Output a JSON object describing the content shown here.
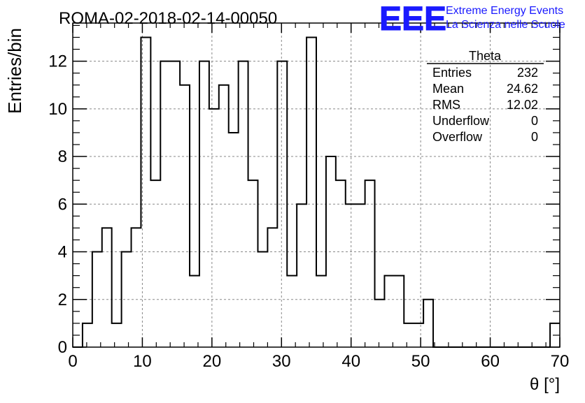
{
  "header": {
    "title": "ROMA-02-2018-02-14-00050",
    "logo_text": "EEE",
    "org_line1": "Extreme Energy Events",
    "org_line2": "La Scienza nelle Scuole",
    "accent_color": "#1a1aff"
  },
  "stats": {
    "name": "Theta",
    "rows": [
      {
        "label": "Entries",
        "value": "232"
      },
      {
        "label": "Mean",
        "value": "24.62"
      },
      {
        "label": "RMS",
        "value": "12.02"
      },
      {
        "label": "Underflow",
        "value": "0"
      },
      {
        "label": "Overflow",
        "value": "0"
      }
    ]
  },
  "chart_data": {
    "type": "bar",
    "style": "step-histogram",
    "title": "ROMA-02-2018-02-14-00050",
    "xlabel": "θ [°]",
    "ylabel": "Entries/bin",
    "xlim": [
      0,
      70
    ],
    "ylim": [
      0,
      13.6
    ],
    "bin_width": 1.4,
    "values": [
      0,
      1,
      4,
      5,
      1,
      4,
      5,
      13,
      7,
      12,
      12,
      11,
      3,
      12,
      10,
      11,
      9,
      12,
      7,
      4,
      5,
      12,
      3,
      6,
      13,
      3,
      8,
      7,
      6,
      6,
      7,
      2,
      3,
      3,
      1,
      1,
      2,
      0,
      0,
      0,
      0,
      0,
      0,
      0,
      0,
      0,
      0,
      0,
      0,
      1
    ],
    "xticks": [
      "0",
      "10",
      "20",
      "30",
      "40",
      "50",
      "60",
      "70"
    ],
    "yticks": [
      "0",
      "2",
      "4",
      "6",
      "8",
      "10",
      "12"
    ],
    "grid": true,
    "legend": "none"
  }
}
